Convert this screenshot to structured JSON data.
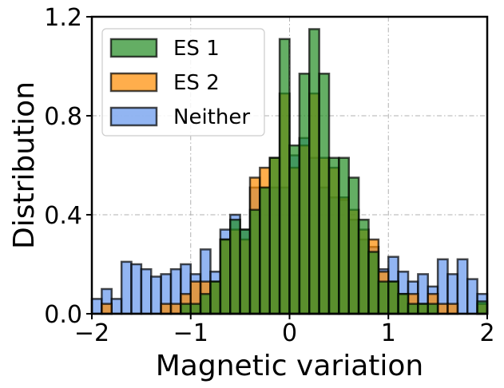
{
  "chart_data": {
    "type": "histogram",
    "xlabel": "Magnetic variation",
    "ylabel": "Distribution",
    "xlim": [
      -2,
      2
    ],
    "ylim": [
      0,
      1.2
    ],
    "xticks": [
      -2,
      -1,
      0,
      1,
      2
    ],
    "xtick_labels": [
      "−2",
      "−1",
      "0",
      "1",
      "2"
    ],
    "yticks": [
      0,
      0.4,
      0.8,
      1.2
    ],
    "ytick_labels": [
      "0.0",
      "0.4",
      "0.8",
      "1.2"
    ],
    "grid": true,
    "legend_position": "top-left",
    "bin_width": 0.1,
    "bin_start": -2.0,
    "series": [
      {
        "name": "Neither",
        "color": "#6495ED",
        "values": [
          0.06,
          0.1,
          0.06,
          0.21,
          0.2,
          0.18,
          0.15,
          0.16,
          0.18,
          0.2,
          0.16,
          0.26,
          0.17,
          0.34,
          0.4,
          0.34,
          0.51,
          0.51,
          0.51,
          0.51,
          0.64,
          0.71,
          0.63,
          0.51,
          0.47,
          0.46,
          0.38,
          0.3,
          0.27,
          0.18,
          0.23,
          0.17,
          0.13,
          0.16,
          0.11,
          0.22,
          0.16,
          0.22,
          0.14,
          0.08
        ]
      },
      {
        "name": "ES 2",
        "color": "#FF8C00",
        "values": [
          0.0,
          0.04,
          0.0,
          0.0,
          0.0,
          0.0,
          0.0,
          0.04,
          0.04,
          0.08,
          0.13,
          0.13,
          0.13,
          0.3,
          0.34,
          0.3,
          0.55,
          0.59,
          0.63,
          0.89,
          0.59,
          0.68,
          0.89,
          0.63,
          0.59,
          0.47,
          0.42,
          0.34,
          0.3,
          0.17,
          0.13,
          0.08,
          0.08,
          0.04,
          0.08,
          0.04,
          0.04,
          0.0,
          0.0,
          0.04
        ]
      },
      {
        "name": "ES 1",
        "color": "#228B22",
        "values": [
          0.0,
          0.0,
          0.0,
          0.0,
          0.0,
          0.0,
          0.0,
          0.0,
          0.0,
          0.04,
          0.04,
          0.08,
          0.13,
          0.3,
          0.38,
          0.34,
          0.42,
          0.51,
          0.63,
          1.11,
          0.68,
          0.97,
          1.15,
          0.97,
          0.63,
          0.63,
          0.55,
          0.38,
          0.25,
          0.13,
          0.13,
          0.08,
          0.04,
          0.04,
          0.04,
          0.0,
          0.0,
          0.0,
          0.0,
          0.05
        ]
      }
    ],
    "legend": [
      {
        "label": "ES 1",
        "color": "#228B22"
      },
      {
        "label": "ES 2",
        "color": "#FF8C00"
      },
      {
        "label": "Neither",
        "color": "#6495ED"
      }
    ]
  }
}
